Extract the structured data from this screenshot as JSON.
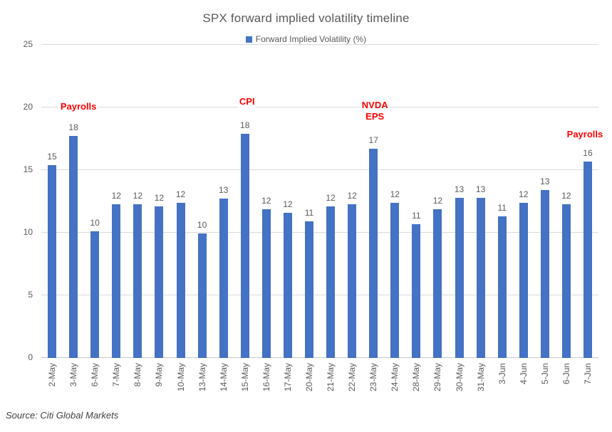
{
  "title": "SPX forward implied volatility timeline",
  "legend": {
    "label": "Forward Implied Volatility (%)"
  },
  "source": "Source: Citi Global Markets",
  "colors": {
    "bar": "#4472C4",
    "annotation": "#FF0000",
    "axis_text": "#595959",
    "title_text": "#595959",
    "gridline": "#D9D9D9"
  },
  "chart_data": {
    "type": "bar",
    "title": "SPX forward implied volatility timeline",
    "series_name": "Forward Implied Volatility (%)",
    "categories": [
      "2-May",
      "3-May",
      "6-May",
      "7-May",
      "8-May",
      "9-May",
      "10-May",
      "13-May",
      "14-May",
      "15-May",
      "16-May",
      "17-May",
      "20-May",
      "21-May",
      "22-May",
      "23-May",
      "24-May",
      "28-May",
      "29-May",
      "30-May",
      "31-May",
      "3-Jun",
      "4-Jun",
      "5-Jun",
      "6-Jun",
      "7-Jun"
    ],
    "values": [
      15.4,
      17.7,
      10.1,
      12.3,
      12.3,
      12.1,
      12.4,
      9.95,
      12.7,
      17.9,
      11.9,
      11.6,
      10.9,
      12.1,
      12.3,
      16.7,
      12.4,
      10.7,
      11.9,
      12.8,
      12.8,
      11.3,
      12.4,
      13.4,
      12.3,
      15.7
    ],
    "labels": [
      15,
      18,
      10,
      12,
      12,
      12,
      12,
      10,
      13,
      18,
      12,
      12,
      11,
      12,
      12,
      17,
      12,
      11,
      12,
      13,
      13,
      11,
      12,
      13,
      12,
      16
    ],
    "xlabel": "",
    "ylabel": "",
    "ylim": [
      0,
      25
    ],
    "yticks": [
      0,
      5,
      10,
      15,
      20,
      25
    ],
    "grid": true,
    "legend_position": "top",
    "bar_color": "#4472C4",
    "annotations": [
      {
        "text": "Payrolls",
        "target": "3-May",
        "target_index": 1,
        "bottom_value": 19.6,
        "dx": 7,
        "color": "#FF0000"
      },
      {
        "text": "CPI",
        "target": "15-May",
        "target_index": 9,
        "bottom_value": 20.0,
        "dx": 3,
        "color": "#FF0000"
      },
      {
        "text": "NVDA\nEPS",
        "target": "23-May",
        "target_index": 15,
        "bottom_value": 18.8,
        "dx": 2,
        "color": "#FF0000"
      },
      {
        "text": "Payrolls",
        "target": "7-Jun",
        "target_index": 25,
        "bottom_value": 17.4,
        "dx": -4,
        "color": "#FF0000"
      }
    ]
  }
}
